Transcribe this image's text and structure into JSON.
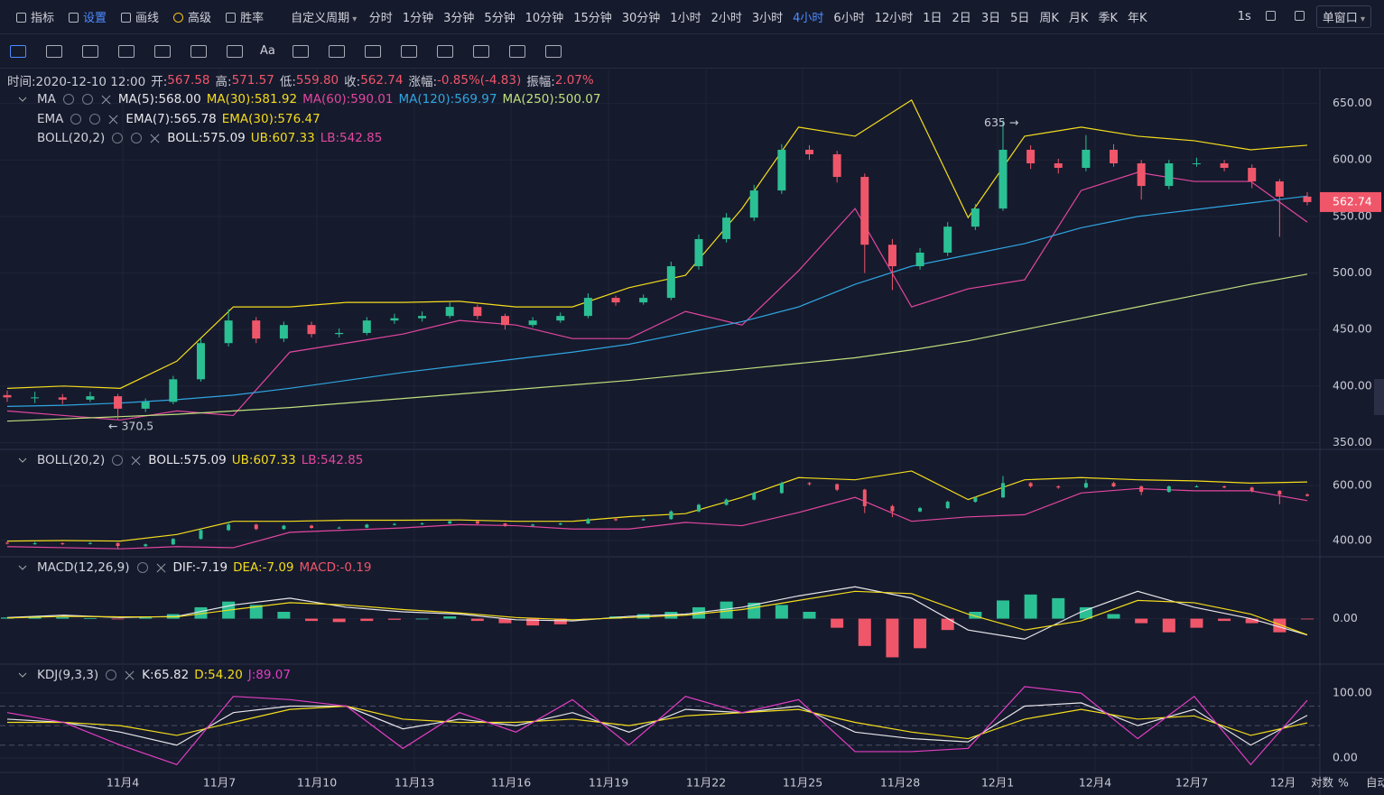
{
  "toolbar": {
    "items": [
      "指标",
      "设置",
      "画线",
      "高级",
      "胜率"
    ],
    "custom": "自定义周期",
    "periods": [
      "分时",
      "1分钟",
      "3分钟",
      "5分钟",
      "10分钟",
      "15分钟",
      "30分钟",
      "1小时",
      "2小时",
      "3小时",
      "4小时",
      "6小时",
      "12小时",
      "1日",
      "2日",
      "3日",
      "5日",
      "周K",
      "月K",
      "季K",
      "年K"
    ],
    "speed": "1s",
    "window": "单窗口",
    "text_tool": "Aa"
  },
  "info": {
    "time": "时间:2020-12-10 12:00",
    "fields": [
      {
        "label": "开:",
        "value": "567.58"
      },
      {
        "label": "高:",
        "value": "571.57"
      },
      {
        "label": "低:",
        "value": "559.80"
      },
      {
        "label": "收:",
        "value": "562.74"
      },
      {
        "label": "涨幅:",
        "value": "-0.85%(-4.83)"
      },
      {
        "label": "振幅:",
        "value": "2.07%"
      }
    ]
  },
  "main": {
    "legends": [
      {
        "name": "MA",
        "items": [
          {
            "text": "MA(5):568.00",
            "color": "#e6e6ea"
          },
          {
            "text": "MA(30):581.92",
            "color": "#f3dd1c"
          },
          {
            "text": "MA(60):590.01",
            "color": "#e2479f"
          },
          {
            "text": "MA(120):569.97",
            "color": "#2ea6e0"
          },
          {
            "text": "MA(250):500.07",
            "color": "#bfe07c"
          }
        ]
      },
      {
        "name": "EMA",
        "items": [
          {
            "text": "EMA(7):565.78",
            "color": "#e6e6ea"
          },
          {
            "text": "EMA(30):576.47",
            "color": "#f3dd1c"
          }
        ]
      },
      {
        "name": "BOLL(20,2)",
        "items": [
          {
            "text": "BOLL:575.09",
            "color": "#e6e6ea"
          },
          {
            "text": "UB:607.33",
            "color": "#f3dd1c"
          },
          {
            "text": "LB:542.85",
            "color": "#e2479f"
          }
        ]
      }
    ],
    "ylim": [
      344,
      680
    ],
    "yticks": [
      {
        "value": 650,
        "label": "650.00"
      },
      {
        "value": 600,
        "label": "600.00"
      },
      {
        "value": 550,
        "label": "550.00"
      },
      {
        "value": 500,
        "label": "500.00"
      },
      {
        "value": 450,
        "label": "450.00"
      },
      {
        "value": 400,
        "label": "400.00"
      },
      {
        "value": 350,
        "label": "350.00"
      }
    ],
    "up_color": "#2bbf94",
    "down_color": "#f0566a",
    "candles": [
      [
        392,
        396,
        386,
        390
      ],
      [
        390,
        395,
        385,
        390
      ],
      [
        390,
        393,
        384,
        388
      ],
      [
        388,
        395,
        386,
        391
      ],
      [
        391,
        393,
        370.5,
        380
      ],
      [
        380,
        389,
        377,
        386
      ],
      [
        386,
        409,
        384,
        406
      ],
      [
        406,
        442,
        404,
        438
      ],
      [
        438,
        468,
        435,
        458
      ],
      [
        458,
        461,
        438,
        442
      ],
      [
        442,
        457,
        439,
        454
      ],
      [
        454,
        457,
        443,
        446
      ],
      [
        446,
        451,
        443,
        447
      ],
      [
        447,
        461,
        445,
        458
      ],
      [
        458,
        464,
        455,
        460
      ],
      [
        460,
        466,
        457,
        462
      ],
      [
        462,
        474,
        460,
        470
      ],
      [
        470,
        472,
        459,
        462
      ],
      [
        462,
        464,
        450,
        454
      ],
      [
        454,
        461,
        452,
        458
      ],
      [
        458,
        465,
        456,
        462
      ],
      [
        462,
        482,
        460,
        478
      ],
      [
        478,
        480,
        471,
        474
      ],
      [
        474,
        481,
        472,
        478
      ],
      [
        478,
        510,
        476,
        506
      ],
      [
        506,
        534,
        503,
        530
      ],
      [
        530,
        553,
        527,
        549
      ],
      [
        549,
        578,
        546,
        573
      ],
      [
        573,
        614,
        570,
        609
      ],
      [
        609,
        613,
        600,
        605
      ],
      [
        605,
        608,
        580,
        585
      ],
      [
        585,
        588,
        500,
        525
      ],
      [
        525,
        530,
        485,
        506
      ],
      [
        506,
        522,
        503,
        518
      ],
      [
        518,
        545,
        515,
        541
      ],
      [
        541,
        561,
        538,
        557
      ],
      [
        557,
        635,
        555,
        609
      ],
      [
        609,
        613,
        592,
        597
      ],
      [
        597,
        601,
        588,
        593
      ],
      [
        593,
        622,
        590,
        609
      ],
      [
        609,
        614,
        594,
        597
      ],
      [
        597,
        600,
        565,
        577
      ],
      [
        577,
        600,
        574,
        597
      ],
      [
        597,
        602,
        594,
        597
      ],
      [
        597,
        600,
        590,
        593
      ],
      [
        593,
        596,
        575,
        581
      ],
      [
        581,
        583,
        532,
        567.58
      ],
      [
        567.58,
        571.57,
        559.8,
        562.74
      ]
    ],
    "lines": [
      {
        "color": "#f3dd1c",
        "values": [
          398,
          400,
          398,
          422,
          470,
          470,
          474,
          474,
          475,
          470,
          470,
          487,
          498,
          557,
          629,
          621,
          653,
          549,
          621,
          629,
          621,
          617,
          609,
          613
        ]
      },
      {
        "color": "#e2479f",
        "values": [
          378,
          374,
          370,
          378,
          374,
          430,
          438,
          446,
          458,
          454,
          442,
          442,
          466,
          454,
          502,
          557,
          470,
          486,
          494,
          573,
          589,
          581,
          581,
          545
        ]
      },
      {
        "color": "#2ea6e0",
        "values": [
          382,
          383,
          385,
          388,
          392,
          398,
          405,
          412,
          418,
          424,
          430,
          437,
          447,
          457,
          470,
          490,
          506,
          516,
          526,
          540,
          550,
          556,
          562,
          568
        ]
      },
      {
        "color": "#bfe07c",
        "values": [
          369,
          371,
          373,
          375,
          378,
          381,
          385,
          389,
          393,
          397,
          401,
          405,
          410,
          415,
          420,
          425,
          432,
          440,
          450,
          460,
          470,
          480,
          490,
          499
        ]
      }
    ],
    "annotations": [
      "635 →",
      "← 370.5"
    ],
    "last_price": "562.74"
  },
  "boll": {
    "legend": {
      "name": "BOLL(20,2)",
      "items": [
        {
          "text": "BOLL:575.09",
          "color": "#e6e6ea"
        },
        {
          "text": "UB:607.33",
          "color": "#f3dd1c"
        },
        {
          "text": "LB:542.85",
          "color": "#e2479f"
        }
      ]
    },
    "ylim": [
      341,
      725
    ],
    "yticks": [
      {
        "value": 600,
        "label": "600.00"
      },
      {
        "value": 400,
        "label": "400.00"
      }
    ]
  },
  "macd": {
    "legend": {
      "name": "MACD(12,26,9)",
      "items": [
        {
          "text": "DIF:-7.19",
          "color": "#e6e6ea"
        },
        {
          "text": "DEA:-7.09",
          "color": "#f3dd1c"
        },
        {
          "text": "MACD:-0.19",
          "color": "#f0566a"
        }
      ]
    },
    "ylim": [
      -20,
      26
    ],
    "yticks": [
      {
        "value": 0,
        "label": "0.00"
      }
    ],
    "histogram": [
      0.5,
      0.8,
      0.6,
      0.2,
      -0.3,
      0.5,
      2,
      5,
      7.5,
      6,
      3,
      -1,
      -1.5,
      -1,
      -0.5,
      0,
      1,
      -1,
      -2,
      -3,
      -2.5,
      -0.5,
      1,
      2,
      3,
      5,
      7.5,
      7,
      6,
      3,
      -4,
      -12,
      -17,
      -13,
      -5,
      3,
      8,
      10.6,
      9,
      5,
      2,
      -2,
      -6,
      -4,
      -1,
      -2,
      -6,
      -0.19
    ],
    "dif": [
      0.5,
      1.5,
      0.5,
      1,
      6,
      9,
      5,
      3,
      2,
      -0.5,
      -1,
      1,
      2,
      5,
      10,
      14,
      9,
      -5,
      -9,
      3,
      12,
      5,
      0,
      -7.19
    ],
    "dea": [
      0.3,
      1,
      0.8,
      0.8,
      4,
      7,
      6,
      4,
      2.5,
      0.5,
      -0.5,
      0.5,
      1.5,
      4,
      8,
      12,
      11,
      2,
      -5,
      -1,
      8,
      7,
      2,
      -7.09
    ]
  },
  "kdj": {
    "legend": {
      "name": "KDJ(9,3,3)",
      "items": [
        {
          "text": "K:65.82",
          "color": "#e6e6ea"
        },
        {
          "text": "D:54.20",
          "color": "#f3dd1c"
        },
        {
          "text": "J:89.07",
          "color": "#e23fc4"
        }
      ]
    },
    "ylim": [
      -22,
      139
    ],
    "yticks": [
      {
        "value": 100,
        "label": "100.00"
      },
      {
        "value": 0,
        "label": "0.00"
      }
    ],
    "guides": [
      80,
      50,
      20
    ],
    "k": [
      60,
      55,
      40,
      20,
      70,
      80,
      80,
      45,
      60,
      50,
      70,
      40,
      75,
      70,
      80,
      40,
      30,
      25,
      80,
      85,
      50,
      75,
      20,
      65.82
    ],
    "d": [
      55,
      55,
      50,
      35,
      55,
      75,
      80,
      60,
      55,
      55,
      60,
      50,
      65,
      70,
      75,
      55,
      40,
      30,
      60,
      75,
      60,
      65,
      35,
      54.2
    ],
    "j": [
      70,
      55,
      20,
      -10,
      95,
      90,
      80,
      15,
      70,
      40,
      90,
      20,
      95,
      70,
      90,
      10,
      10,
      15,
      110,
      100,
      30,
      95,
      -10,
      89.07
    ]
  },
  "xaxis": {
    "labels": [
      "11月4",
      "11月7",
      "11月10",
      "11月13",
      "11月16",
      "11月19",
      "11月22",
      "11月25",
      "11月28",
      "12月1",
      "12月4",
      "12月7",
      "12月"
    ]
  },
  "footer": [
    "对数",
    "%",
    "自动"
  ]
}
